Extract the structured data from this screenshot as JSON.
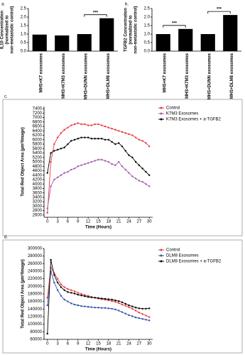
{
  "chart_data": [
    {
      "type": "bar",
      "panel_label": "a.",
      "ylabel": [
        "IL10 Concentration",
        "(normalized to",
        "non-metastatic control)"
      ],
      "categories": [
        "MHS+K7 exosomes",
        "MHS+K7M3 exosomes",
        "MHS+DUNN exosomes",
        "MHS+DLM8 exosomes"
      ],
      "values": [
        0.97,
        0.92,
        1.0,
        1.93
      ],
      "color": "#000000",
      "ylim": [
        0,
        2.5
      ],
      "yticks": [
        {
          "value": 0,
          "label": "0.0"
        },
        0.5,
        {
          "value": 1,
          "label": "1.0"
        },
        1.5,
        {
          "value": 2,
          "label": "2.0"
        },
        2.5
      ],
      "brackets": [
        {
          "from": 2,
          "to": 3,
          "label": "***"
        }
      ]
    },
    {
      "type": "bar",
      "panel_label": "b.",
      "ylabel": [
        "TGFB2 Concentration",
        "(normalized to",
        "non-metastatic control)"
      ],
      "categories": [
        "MHS+K7 exosomes",
        "MHS+K7M3 exosomes",
        "MHS+DUNN exosomes",
        "MHS+DLM8 exosomes"
      ],
      "values": [
        1.0,
        1.3,
        1.0,
        2.12
      ],
      "color": "#000000",
      "ylim": [
        0,
        2.5
      ],
      "yticks": [
        {
          "value": 0,
          "label": "0.0"
        },
        0.5,
        {
          "value": 1,
          "label": "1.0"
        },
        1.5,
        {
          "value": 2,
          "label": "2.0"
        },
        2.5
      ],
      "brackets": [
        {
          "from": 0,
          "to": 1,
          "label": "***"
        },
        {
          "from": 2,
          "to": 3,
          "label": "***"
        }
      ]
    },
    {
      "type": "line",
      "panel_label": "c.",
      "xlabel": "Time (Hours)",
      "ylabel": [
        "Total Red Object Area (µm²/Image)"
      ],
      "x": [
        0,
        1,
        2,
        3,
        4,
        5,
        6,
        7,
        8,
        9,
        10,
        11,
        12,
        13,
        14,
        15,
        16,
        17,
        18,
        19,
        20,
        21,
        22,
        23,
        24,
        25,
        26,
        27,
        28,
        29,
        30
      ],
      "xlim": [
        -1,
        31
      ],
      "xticks": [
        0,
        3,
        6,
        9,
        12,
        15,
        18,
        21,
        24,
        27,
        30
      ],
      "ylim": [
        2500,
        7500
      ],
      "yticks": [
        2600,
        2800,
        3000,
        3200,
        3400,
        3600,
        3800,
        4000,
        4200,
        4400,
        4600,
        4800,
        5000,
        5200,
        5400,
        5600,
        5800,
        6000,
        6200,
        6400,
        6600,
        6800,
        7000,
        7200,
        7400
      ],
      "series": [
        {
          "name": "Control",
          "color": "#e8383d",
          "values": [
            2700,
            5000,
            5800,
            6100,
            6300,
            6450,
            6550,
            6650,
            6700,
            6750,
            6700,
            6700,
            6650,
            6650,
            6700,
            6700,
            6650,
            6600,
            6550,
            6500,
            6450,
            6400,
            6350,
            6300,
            6250,
            6200,
            6100,
            6000,
            5950,
            5850,
            5700
          ]
        },
        {
          "name": "K7M3 Exosomes",
          "color": "#a05ca8",
          "values": [
            2900,
            3900,
            4200,
            4300,
            4400,
            4500,
            4550,
            4650,
            4700,
            4800,
            4850,
            4900,
            4950,
            5000,
            5050,
            5100,
            5100,
            5050,
            5000,
            4900,
            4850,
            5000,
            4800,
            4650,
            4500,
            4350,
            4250,
            4150,
            4100,
            4000,
            3900
          ]
        },
        {
          "name": "K7M3 Exosomes + a-TGFB2",
          "color": "#000000",
          "values": [
            4500,
            5400,
            5500,
            5550,
            5600,
            5650,
            5800,
            5950,
            6000,
            6050,
            6100,
            6100,
            6100,
            6050,
            6050,
            6050,
            6050,
            6000,
            6000,
            5900,
            5800,
            5850,
            5700,
            5500,
            5300,
            5200,
            5000,
            4850,
            4700,
            4550,
            4400
          ]
        }
      ]
    },
    {
      "type": "line",
      "panel_label": "d.",
      "xlabel": "Time (Hours)",
      "ylabel": [
        "Total Red Object Area (µm²/Image)"
      ],
      "x": [
        0,
        1,
        2,
        3,
        4,
        5,
        6,
        7,
        8,
        9,
        10,
        11,
        12,
        13,
        14,
        15,
        16,
        17,
        18,
        19,
        20,
        21,
        22,
        23,
        24,
        25,
        26,
        27,
        28,
        29,
        30
      ],
      "xlim": [
        -1,
        31
      ],
      "xticks": [
        0,
        3,
        6,
        9,
        12,
        15,
        18,
        21,
        24,
        27,
        30
      ],
      "ylim": [
        60000,
        300000
      ],
      "yticks": [
        60000,
        80000,
        100000,
        120000,
        140000,
        160000,
        180000,
        200000,
        220000,
        240000,
        260000,
        280000,
        300000
      ],
      "series": [
        {
          "name": "Control",
          "color": "#e8383d",
          "values": [
            170000,
            250000,
            235000,
            220000,
            205000,
            198000,
            193000,
            190000,
            187000,
            183000,
            180000,
            177000,
            175000,
            172000,
            170000,
            168000,
            166000,
            165000,
            163000,
            161000,
            159000,
            156000,
            152000,
            149000,
            145000,
            141000,
            136000,
            131000,
            127000,
            123000,
            119000
          ]
        },
        {
          "name": "DLM8 Exosomes",
          "color": "#2f4fa8",
          "values": [
            150000,
            240000,
            210000,
            190000,
            175000,
            165000,
            160000,
            155000,
            152000,
            150000,
            148000,
            147000,
            146000,
            145000,
            144000,
            144000,
            143000,
            143000,
            142000,
            141000,
            139000,
            136000,
            132000,
            128000,
            124000,
            121000,
            118000,
            116000,
            114000,
            112000,
            110000
          ]
        },
        {
          "name": "DLM8 Exosomes + a-TGFB2",
          "color": "#000000",
          "values": [
            75000,
            270000,
            230000,
            210000,
            198000,
            190000,
            185000,
            183000,
            181000,
            178000,
            176000,
            174000,
            172000,
            171000,
            170000,
            169000,
            168000,
            167000,
            166000,
            165000,
            163000,
            161000,
            158000,
            154000,
            150000,
            147000,
            144000,
            142000,
            141000,
            141000,
            142000
          ]
        }
      ]
    }
  ]
}
